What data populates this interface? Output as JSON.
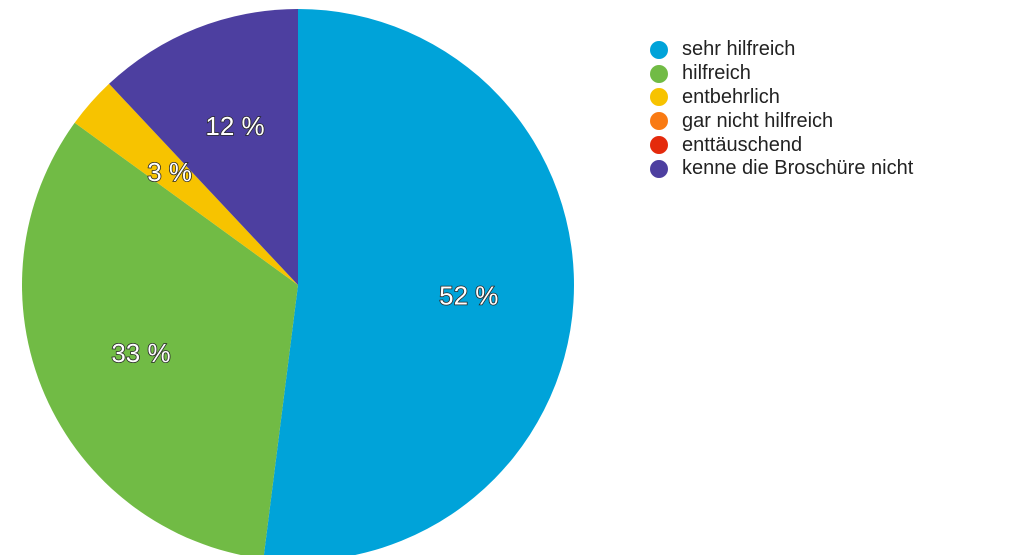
{
  "chart_data": {
    "type": "pie",
    "title": "",
    "legend_position": "right",
    "series": [
      {
        "name": "sehr hilfreich",
        "value": 52,
        "label": "52 %",
        "color": "#00a3d9"
      },
      {
        "name": "hilfreich",
        "value": 33,
        "label": "33 %",
        "color": "#71bb45"
      },
      {
        "name": "entbehrlich",
        "value": 3,
        "label": "3 %",
        "color": "#f7c300"
      },
      {
        "name": "gar nicht hilfreich",
        "value": 0,
        "label": "",
        "color": "#f97a13"
      },
      {
        "name": "enttäuschend",
        "value": 0,
        "label": "",
        "color": "#e42a0c"
      },
      {
        "name": "kenne die Broschüre nicht",
        "value": 12,
        "label": "12 %",
        "color": "#4d3fa0"
      }
    ]
  }
}
